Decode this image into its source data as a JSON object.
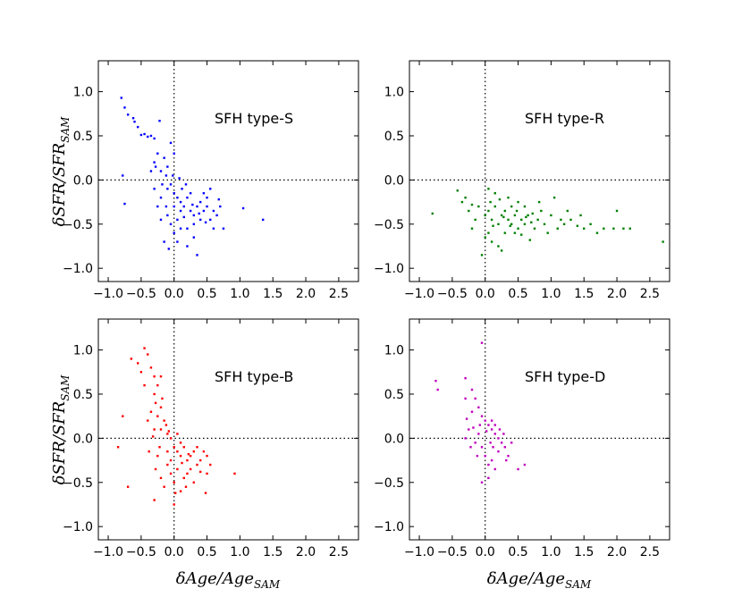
{
  "chart_data": [
    {
      "type": "scatter",
      "label": "SFH type-S",
      "color": "#0000ff",
      "xlim": [
        -1.15,
        2.8
      ],
      "ylim": [
        -1.15,
        1.35
      ],
      "xticks": [
        -1.0,
        -0.5,
        0.0,
        0.5,
        1.0,
        1.5,
        2.0,
        2.5
      ],
      "yticks": [
        -1.0,
        -0.5,
        0.0,
        0.5,
        1.0
      ],
      "xlabel": "",
      "ylabel": "δSFR/SFR_SAM",
      "reference_lines": {
        "x": 0.0,
        "y": 0.0
      },
      "points": [
        [
          -0.8,
          0.93
        ],
        [
          -0.75,
          0.82
        ],
        [
          -0.7,
          0.74
        ],
        [
          -0.62,
          0.7
        ],
        [
          -0.6,
          0.66
        ],
        [
          -0.55,
          0.6
        ],
        [
          -0.5,
          0.51
        ],
        [
          -0.45,
          0.52
        ],
        [
          -0.4,
          0.49
        ],
        [
          -0.35,
          0.5
        ],
        [
          -0.3,
          0.47
        ],
        [
          -0.22,
          0.67
        ],
        [
          -0.25,
          0.3
        ],
        [
          -0.3,
          0.2
        ],
        [
          -0.35,
          0.1
        ],
        [
          -0.28,
          0.15
        ],
        [
          -0.2,
          0.1
        ],
        [
          -0.15,
          0.25
        ],
        [
          -0.12,
          0.05
        ],
        [
          -0.18,
          -0.05
        ],
        [
          -0.1,
          -0.1
        ],
        [
          -0.05,
          -0.05
        ],
        [
          0.0,
          -0.15
        ],
        [
          0.05,
          -0.2
        ],
        [
          0.1,
          -0.25
        ],
        [
          0.15,
          -0.3
        ],
        [
          0.2,
          -0.2
        ],
        [
          0.25,
          -0.35
        ],
        [
          0.3,
          -0.4
        ],
        [
          0.35,
          -0.3
        ],
        [
          0.4,
          -0.25
        ],
        [
          0.45,
          -0.35
        ],
        [
          0.5,
          -0.3
        ],
        [
          0.55,
          -0.45
        ],
        [
          0.6,
          -0.35
        ],
        [
          0.65,
          -0.4
        ],
        [
          0.7,
          -0.3
        ],
        [
          -0.25,
          -0.3
        ],
        [
          -0.2,
          -0.2
        ],
        [
          -0.1,
          -0.4
        ],
        [
          -0.05,
          -0.5
        ],
        [
          0.0,
          -0.6
        ],
        [
          0.05,
          -0.45
        ],
        [
          0.1,
          -0.55
        ],
        [
          -0.15,
          -0.7
        ],
        [
          -0.08,
          -0.78
        ],
        [
          0.35,
          -0.85
        ],
        [
          0.3,
          -0.65
        ],
        [
          0.2,
          -0.55
        ],
        [
          0.12,
          -0.1
        ],
        [
          0.18,
          -0.05
        ],
        [
          0.08,
          0.02
        ],
        [
          -0.02,
          0.05
        ],
        [
          0.25,
          -0.15
        ],
        [
          0.4,
          -0.45
        ],
        [
          0.5,
          -0.2
        ],
        [
          -0.78,
          0.05
        ],
        [
          -0.75,
          -0.27
        ],
        [
          1.05,
          -0.32
        ],
        [
          1.35,
          -0.45
        ],
        [
          0.75,
          -0.55
        ],
        [
          0.68,
          -0.22
        ],
        [
          -0.3,
          -0.1
        ],
        [
          -0.2,
          -0.45
        ],
        [
          0.0,
          -0.3
        ],
        [
          0.15,
          -0.42
        ],
        [
          0.3,
          -0.5
        ],
        [
          0.45,
          -0.15
        ],
        [
          0.55,
          -0.1
        ],
        [
          0.6,
          -0.55
        ],
        [
          -0.1,
          0.15
        ],
        [
          0.0,
          0.3
        ],
        [
          -0.05,
          0.42
        ],
        [
          0.05,
          -0.7
        ],
        [
          0.2,
          -0.75
        ],
        [
          -0.12,
          -0.3
        ],
        [
          0.1,
          -0.35
        ],
        [
          0.28,
          -0.28
        ],
        [
          0.38,
          -0.38
        ],
        [
          0.48,
          -0.48
        ]
      ]
    },
    {
      "type": "scatter",
      "label": "SFH type-R",
      "color": "#008000",
      "xlim": [
        -1.15,
        2.8
      ],
      "ylim": [
        -1.15,
        1.35
      ],
      "xticks": [
        -1.0,
        -0.5,
        0.0,
        0.5,
        1.0,
        1.5,
        2.0,
        2.5
      ],
      "yticks": [
        -1.0,
        -0.5,
        0.0,
        0.5,
        1.0
      ],
      "xlabel": "",
      "ylabel": "",
      "reference_lines": {
        "x": 0.0,
        "y": 0.0
      },
      "points": [
        [
          -0.8,
          -0.38
        ],
        [
          -0.42,
          -0.12
        ],
        [
          -0.3,
          -0.2
        ],
        [
          -0.25,
          -0.35
        ],
        [
          -0.2,
          -0.28
        ],
        [
          -0.1,
          -0.3
        ],
        [
          0.0,
          -0.4
        ],
        [
          0.05,
          -0.35
        ],
        [
          0.1,
          -0.45
        ],
        [
          0.15,
          -0.3
        ],
        [
          0.2,
          -0.5
        ],
        [
          0.25,
          -0.4
        ],
        [
          0.3,
          -0.35
        ],
        [
          0.35,
          -0.45
        ],
        [
          0.4,
          -0.5
        ],
        [
          0.45,
          -0.4
        ],
        [
          0.5,
          -0.55
        ],
        [
          0.55,
          -0.45
        ],
        [
          0.6,
          -0.5
        ],
        [
          0.65,
          -0.4
        ],
        [
          0.7,
          -0.48
        ],
        [
          0.8,
          -0.45
        ],
        [
          0.9,
          -0.5
        ],
        [
          1.0,
          -0.4
        ],
        [
          1.1,
          -0.55
        ],
        [
          1.2,
          -0.5
        ],
        [
          1.3,
          -0.45
        ],
        [
          1.4,
          -0.52
        ],
        [
          1.5,
          -0.55
        ],
        [
          1.6,
          -0.5
        ],
        [
          1.7,
          -0.6
        ],
        [
          1.8,
          -0.55
        ],
        [
          1.95,
          -0.55
        ],
        [
          2.1,
          -0.55
        ],
        [
          2.2,
          -0.55
        ],
        [
          2.7,
          -0.7
        ],
        [
          2.0,
          -0.35
        ],
        [
          0.0,
          -0.65
        ],
        [
          0.1,
          -0.7
        ],
        [
          0.2,
          -0.75
        ],
        [
          -0.05,
          -0.85
        ],
        [
          0.25,
          -0.8
        ],
        [
          0.05,
          -0.6
        ],
        [
          -0.15,
          -0.45
        ],
        [
          0.3,
          -0.6
        ],
        [
          0.4,
          -0.3
        ],
        [
          0.5,
          -0.25
        ],
        [
          0.6,
          -0.3
        ],
        [
          0.35,
          -0.2
        ],
        [
          0.15,
          -0.15
        ],
        [
          0.05,
          -0.1
        ],
        [
          0.75,
          -0.55
        ],
        [
          0.85,
          -0.35
        ],
        [
          1.05,
          -0.2
        ],
        [
          1.25,
          -0.35
        ],
        [
          1.45,
          -0.4
        ],
        [
          0.45,
          -0.6
        ],
        [
          0.55,
          -0.62
        ],
        [
          0.68,
          -0.68
        ],
        [
          -0.2,
          -0.55
        ],
        [
          0.12,
          -0.52
        ],
        [
          0.28,
          -0.42
        ],
        [
          0.38,
          -0.52
        ],
        [
          0.62,
          -0.42
        ],
        [
          0.72,
          -0.38
        ],
        [
          0.95,
          -0.6
        ],
        [
          1.15,
          -0.45
        ],
        [
          -0.35,
          -0.25
        ],
        [
          0.08,
          -0.25
        ],
        [
          0.22,
          -0.22
        ],
        [
          0.48,
          -0.35
        ],
        [
          0.82,
          -0.25
        ]
      ]
    },
    {
      "type": "scatter",
      "label": "SFH type-B",
      "color": "#ff0000",
      "xlim": [
        -1.15,
        2.8
      ],
      "ylim": [
        -1.15,
        1.35
      ],
      "xticks": [
        -1.0,
        -0.5,
        0.0,
        0.5,
        1.0,
        1.5,
        2.0,
        2.5
      ],
      "yticks": [
        -1.0,
        -0.5,
        0.0,
        0.5,
        1.0
      ],
      "xlabel": "δAge/Age_SAM",
      "ylabel": "δSFR/SFR_SAM",
      "reference_lines": {
        "x": 0.0,
        "y": 0.0
      },
      "points": [
        [
          -0.45,
          1.02
        ],
        [
          -0.65,
          0.9
        ],
        [
          -0.55,
          0.85
        ],
        [
          -0.5,
          0.75
        ],
        [
          -0.4,
          0.95
        ],
        [
          -0.35,
          0.8
        ],
        [
          -0.3,
          0.7
        ],
        [
          -0.25,
          0.6
        ],
        [
          -0.3,
          0.5
        ],
        [
          -0.28,
          0.4
        ],
        [
          -0.2,
          0.35
        ],
        [
          -0.25,
          0.25
        ],
        [
          -0.15,
          0.2
        ],
        [
          -0.2,
          0.1
        ],
        [
          -0.1,
          0.05
        ],
        [
          -0.05,
          0.0
        ],
        [
          0.0,
          -0.1
        ],
        [
          0.05,
          -0.15
        ],
        [
          0.1,
          -0.2
        ],
        [
          0.15,
          -0.1
        ],
        [
          0.2,
          -0.25
        ],
        [
          0.25,
          -0.2
        ],
        [
          0.3,
          -0.15
        ],
        [
          0.35,
          -0.3
        ],
        [
          0.4,
          -0.25
        ],
        [
          0.5,
          -0.2
        ],
        [
          0.5,
          -0.4
        ],
        [
          0.45,
          -0.15
        ],
        [
          0.55,
          -0.3
        ],
        [
          0.35,
          -0.1
        ],
        [
          -0.1,
          -0.3
        ],
        [
          -0.05,
          -0.4
        ],
        [
          0.0,
          -0.5
        ],
        [
          0.05,
          -0.35
        ],
        [
          0.1,
          -0.6
        ],
        [
          0.15,
          -0.45
        ],
        [
          -0.15,
          -0.55
        ],
        [
          -0.2,
          -0.45
        ],
        [
          -0.3,
          -0.7
        ],
        [
          0.0,
          -0.75
        ],
        [
          -0.7,
          -0.55
        ],
        [
          -0.85,
          -0.1
        ],
        [
          -0.78,
          0.25
        ],
        [
          0.48,
          -0.62
        ],
        [
          0.92,
          -0.4
        ],
        [
          -0.25,
          -0.2
        ],
        [
          -0.3,
          0.1
        ],
        [
          -0.35,
          0.3
        ],
        [
          -0.4,
          0.2
        ],
        [
          -0.1,
          -0.15
        ],
        [
          0.05,
          0.05
        ],
        [
          0.1,
          -0.05
        ],
        [
          -0.22,
          -0.1
        ],
        [
          -0.12,
          0.15
        ],
        [
          0.2,
          -0.4
        ],
        [
          0.3,
          -0.5
        ],
        [
          0.25,
          -0.35
        ],
        [
          -0.05,
          -0.25
        ],
        [
          -0.18,
          0.45
        ],
        [
          -0.32,
          0.02
        ],
        [
          0.12,
          -0.28
        ],
        [
          0.22,
          -0.18
        ],
        [
          0.4,
          -0.38
        ],
        [
          -0.08,
          0.08
        ],
        [
          -0.28,
          -0.35
        ],
        [
          -0.38,
          -0.15
        ],
        [
          0.02,
          -0.62
        ],
        [
          0.18,
          -0.55
        ],
        [
          -0.45,
          0.6
        ],
        [
          -0.2,
          0.7
        ]
      ]
    },
    {
      "type": "scatter",
      "label": "SFH type-D",
      "color": "#bf00bf",
      "xlim": [
        -1.15,
        2.8
      ],
      "ylim": [
        -1.15,
        1.35
      ],
      "xticks": [
        -1.0,
        -0.5,
        0.0,
        0.5,
        1.0,
        1.5,
        2.0,
        2.5
      ],
      "yticks": [
        -1.0,
        -0.5,
        0.0,
        0.5,
        1.0
      ],
      "xlabel": "δAge/Age_SAM",
      "ylabel": "",
      "reference_lines": {
        "x": 0.0,
        "y": 0.0
      },
      "points": [
        [
          -0.05,
          1.08
        ],
        [
          -0.75,
          0.65
        ],
        [
          -0.72,
          0.55
        ],
        [
          -0.3,
          0.68
        ],
        [
          -0.2,
          0.55
        ],
        [
          -0.15,
          0.45
        ],
        [
          -0.1,
          0.35
        ],
        [
          -0.2,
          0.3
        ],
        [
          -0.05,
          0.25
        ],
        [
          0.0,
          0.2
        ],
        [
          0.05,
          0.15
        ],
        [
          0.1,
          0.1
        ],
        [
          0.15,
          0.05
        ],
        [
          0.2,
          0.0
        ],
        [
          0.25,
          -0.05
        ],
        [
          0.3,
          -0.1
        ],
        [
          0.35,
          -0.2
        ],
        [
          0.4,
          -0.05
        ],
        [
          0.5,
          -0.35
        ],
        [
          0.6,
          -0.3
        ],
        [
          -0.3,
          0.0
        ],
        [
          -0.25,
          0.1
        ],
        [
          -0.15,
          -0.05
        ],
        [
          -0.1,
          0.05
        ],
        [
          -0.05,
          -0.1
        ],
        [
          0.0,
          -0.2
        ],
        [
          0.05,
          -0.3
        ],
        [
          0.1,
          -0.25
        ],
        [
          0.15,
          -0.35
        ],
        [
          0.2,
          -0.15
        ],
        [
          -0.05,
          -0.5
        ],
        [
          0.05,
          -0.45
        ],
        [
          0.1,
          0.2
        ],
        [
          0.15,
          0.15
        ],
        [
          -0.3,
          0.45
        ],
        [
          -0.28,
          0.22
        ],
        [
          -0.18,
          0.12
        ],
        [
          0.02,
          0.08
        ],
        [
          0.22,
          0.1
        ],
        [
          0.28,
          0.05
        ],
        [
          -0.08,
          0.15
        ],
        [
          0.12,
          -0.1
        ],
        [
          -0.22,
          -0.1
        ],
        [
          0.32,
          -0.25
        ],
        [
          0.08,
          -0.05
        ],
        [
          -0.12,
          -0.2
        ]
      ]
    }
  ]
}
